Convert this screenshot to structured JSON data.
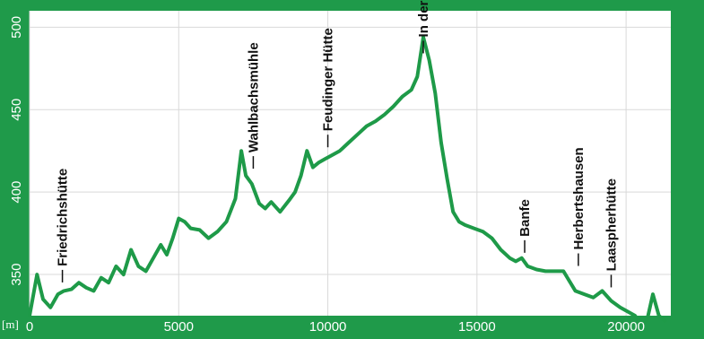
{
  "chart_data": {
    "type": "line",
    "unit_label": "[m]",
    "xlim": [
      0,
      21500
    ],
    "ylim": [
      325,
      510
    ],
    "xticks": [
      0,
      5000,
      10000,
      15000,
      20000
    ],
    "yticks": [
      350,
      400,
      450,
      500
    ],
    "grid": true,
    "colors": {
      "line": "#1e9a48",
      "background": "#ffffff",
      "frame": "#1f9a4a",
      "grid": "#d9d9d9"
    },
    "series": [
      {
        "x": [
          0,
          250,
          450,
          700,
          950,
          1150,
          1400,
          1650,
          1900,
          2150,
          2400,
          2650,
          2900,
          3150,
          3400,
          3650,
          3900,
          4150,
          4400,
          4600,
          4800,
          5000,
          5200,
          5400,
          5700,
          6000,
          6300,
          6600,
          6900,
          7100,
          7250,
          7450,
          7700,
          7900,
          8100,
          8400,
          8700,
          8900,
          9100,
          9300,
          9500,
          9700,
          9900,
          10100,
          10400,
          10700,
          11000,
          11300,
          11600,
          11900,
          12200,
          12500,
          12800,
          13000,
          13200,
          13400,
          13600,
          13800,
          14000,
          14200,
          14400,
          14600,
          14900,
          15200,
          15500,
          15800,
          16100,
          16300,
          16500,
          16700,
          17000,
          17300,
          17600,
          17900,
          18100,
          18300,
          18600,
          18900,
          19200,
          19500,
          19800,
          20100,
          20300,
          20500,
          20700,
          20900,
          21100,
          21300
        ],
        "y": [
          325,
          350,
          335,
          330,
          338,
          340,
          341,
          345,
          342,
          340,
          348,
          345,
          355,
          350,
          365,
          355,
          352,
          360,
          368,
          362,
          372,
          384,
          382,
          378,
          377,
          372,
          376,
          382,
          396,
          425,
          410,
          405,
          393,
          390,
          394,
          388,
          395,
          400,
          410,
          425,
          415,
          418,
          420,
          422,
          425,
          430,
          435,
          440,
          443,
          447,
          452,
          458,
          462,
          470,
          494,
          480,
          460,
          430,
          408,
          388,
          382,
          380,
          378,
          376,
          372,
          365,
          360,
          358,
          360,
          355,
          353,
          352,
          352,
          352,
          346,
          340,
          338,
          336,
          340,
          334,
          330,
          327,
          325,
          320,
          322,
          338,
          325,
          322
        ]
      }
    ],
    "annotations": [
      {
        "text": "Friedrichshütte",
        "x": 1100,
        "y": 343
      },
      {
        "text": "Wahlbachsmühle",
        "x": 7500,
        "y": 412
      },
      {
        "text": "Feudinger Hütte",
        "x": 10000,
        "y": 425
      },
      {
        "text": "In der Indel",
        "x": 13200,
        "y": 482
      },
      {
        "text": "Banfe",
        "x": 16600,
        "y": 361
      },
      {
        "text": "Herbertshausen",
        "x": 18400,
        "y": 353
      },
      {
        "text": "Laaspherhütte",
        "x": 19500,
        "y": 340
      }
    ]
  }
}
